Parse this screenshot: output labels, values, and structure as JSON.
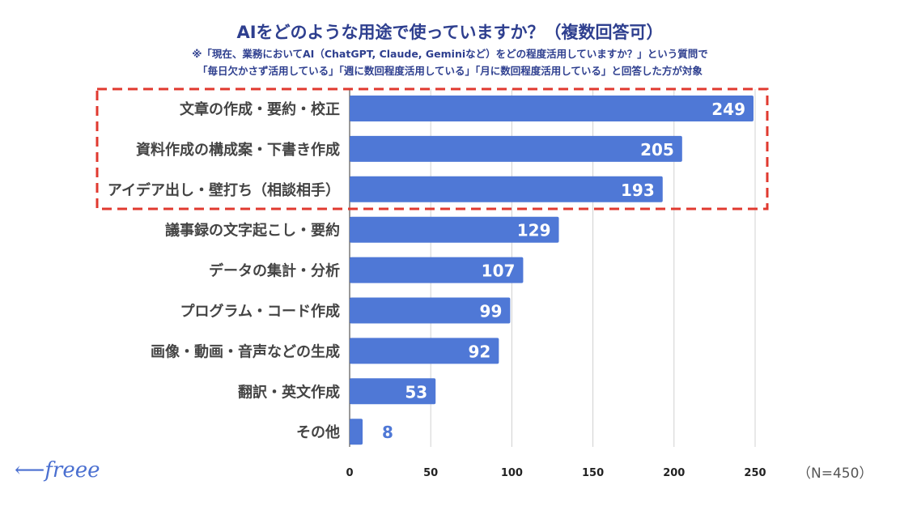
{
  "chart_data": {
    "type": "bar",
    "orientation": "horizontal",
    "title": "AIをどのような用途で使っていますか？（複数回答可）",
    "subtitle": [
      "※「現在、業務においてAI（ChatGPT, Claude, Geminiなど）をどの程度活用していますか？」という質問で",
      "「毎日欠かさず活用している」「週に数回程度活用している」「月に数回程度活用している」と回答した方が対象"
    ],
    "categories": [
      "文章の作成・要約・校正",
      "資料作成の構成案・下書き作成",
      "アイデア出し・壁打ち（相談相手）",
      "議事録の文字起こし・要約",
      "データの集計・分析",
      "プログラム・コード作成",
      "画像・動画・音声などの生成",
      "翻訳・英文作成",
      "その他"
    ],
    "values": [
      249,
      205,
      193,
      129,
      107,
      99,
      92,
      53,
      8
    ],
    "xlim": [
      0,
      250
    ],
    "xticks": [
      0,
      50,
      100,
      150,
      200,
      250
    ],
    "grid": true,
    "bar_color": "#4f78d6",
    "highlight_color": "#e0392f",
    "highlighted_categories": [
      "文章の作成・要約・校正",
      "資料作成の構成案・下書き作成",
      "アイデア出し・壁打ち（相談相手）"
    ],
    "note": "（N=450）"
  },
  "logo": "freee"
}
